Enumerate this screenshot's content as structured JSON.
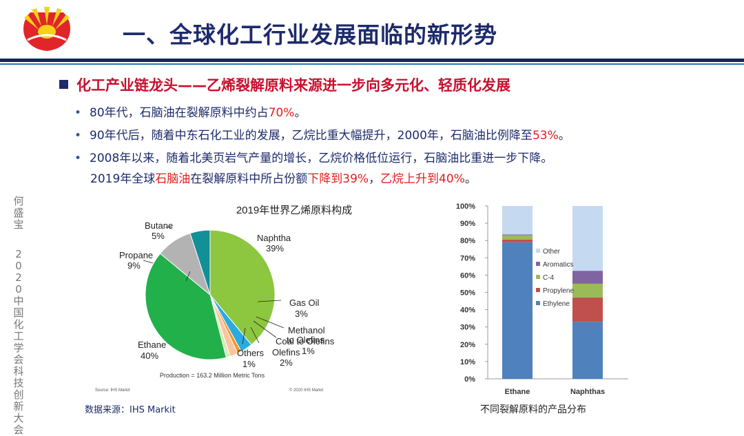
{
  "header": {
    "title": "一、全球化工行业发展面临的新形势"
  },
  "section": {
    "heading": "化工产业链龙头——乙烯裂解原料来源进一步向多元化、轻质化发展"
  },
  "bullets": [
    {
      "parts": [
        {
          "text": "80年代，石脑油在裂解原料中约占",
          "red": false
        },
        {
          "text": "70%",
          "red": true
        },
        {
          "text": "。",
          "red": false
        }
      ]
    },
    {
      "parts": [
        {
          "text": "90年代后，随着中东石化工业的发展，乙烷比重大幅提升，2000年，石脑油比例降至",
          "red": false
        },
        {
          "text": "53%",
          "red": true
        },
        {
          "text": "。",
          "red": false
        }
      ]
    },
    {
      "parts": [
        {
          "text": "2008年以来，随着北美页岩气产量的增长，乙烷价格低位运行，石脑油比重进一步下降。",
          "red": false
        }
      ]
    },
    {
      "parts": [
        {
          "text": "2019年全球",
          "red": false
        },
        {
          "text": "石脑油",
          "red": true
        },
        {
          "text": "在裂解原料中所占份额",
          "red": false
        },
        {
          "text": "下降到39%",
          "red": true
        },
        {
          "text": "，",
          "red": false
        },
        {
          "text": "乙烷上升到40%",
          "red": true
        },
        {
          "text": "。",
          "red": false
        }
      ]
    }
  ],
  "side_text": {
    "name": "何盛宝",
    "event": "2020中国化工学会科技创新大会"
  },
  "footer": {
    "source_left": "数据来源：IHS Markit",
    "caption_right": "不同裂解原料的产品分布"
  },
  "colors": {
    "title": "#1d2a6b",
    "accent_red": "#e21c1c",
    "rule": "#18245f"
  },
  "chart_data": [
    {
      "type": "pie",
      "title": "2019年世界乙烯原料构成",
      "slices": [
        {
          "label": "Naphtha",
          "pct_label": "39%",
          "value": 39,
          "color": "#8dc63f"
        },
        {
          "label": "Gas Oil",
          "pct_label": "3%",
          "value": 3,
          "color": "#29abe2"
        },
        {
          "label": "Methanol to Olefins",
          "pct_label": "1%",
          "value": 1,
          "color": "#f7941d"
        },
        {
          "label": "Coal to Olefins",
          "pct_label": "2%",
          "value": 2,
          "color": "#f9c5a0"
        },
        {
          "label": "Others",
          "pct_label": "1%",
          "value": 1,
          "color": "#d9e8b8"
        },
        {
          "label": "Ethane",
          "pct_label": "40%",
          "value": 40,
          "color": "#22b04b"
        },
        {
          "label": "Propane",
          "pct_label": "9%",
          "value": 9,
          "color": "#b3b3b3"
        },
        {
          "label": "Butane",
          "pct_label": "5%",
          "value": 5,
          "color": "#138f98"
        }
      ],
      "label_text": {
        "naphtha": "Naphtha",
        "gasoil": "Gas Oil",
        "methanol_a": "Methanol",
        "methanol_b": "to Olefins",
        "coal_a": "Coal to Olefins",
        "coal_b": "Olefins",
        "others": "Others",
        "ethane": "Ethane",
        "propane": "Propane",
        "butane": "Butane"
      },
      "production_note": "Production = 163.2 Million Metric Tons",
      "source_note": "Source: IHS Markit",
      "copyright_note": "© 2020 IHS Markit"
    },
    {
      "type": "bar",
      "stacked": true,
      "categories": [
        "Ethane",
        "Naphthas"
      ],
      "ylim": [
        0,
        100
      ],
      "yticks": [
        "0%",
        "10%",
        "20%",
        "30%",
        "40%",
        "50%",
        "60%",
        "70%",
        "80%",
        "90%",
        "100%"
      ],
      "series": [
        {
          "name": "Ethylene",
          "color": "#4f81bd",
          "values": [
            79,
            33
          ]
        },
        {
          "name": "Propylene",
          "color": "#c0504d",
          "values": [
            1.5,
            14
          ]
        },
        {
          "name": "C-4",
          "color": "#9bbb59",
          "values": [
            2.5,
            8
          ]
        },
        {
          "name": "Aromatics",
          "color": "#8064a2",
          "values": [
            0.5,
            7.5
          ]
        },
        {
          "name": "Other",
          "color": "#c5d9f1",
          "values": [
            16.5,
            37.5
          ]
        }
      ],
      "legend_order": [
        "Other",
        "Aromatics",
        "C-4",
        "Propylene",
        "Ethylene"
      ]
    }
  ]
}
